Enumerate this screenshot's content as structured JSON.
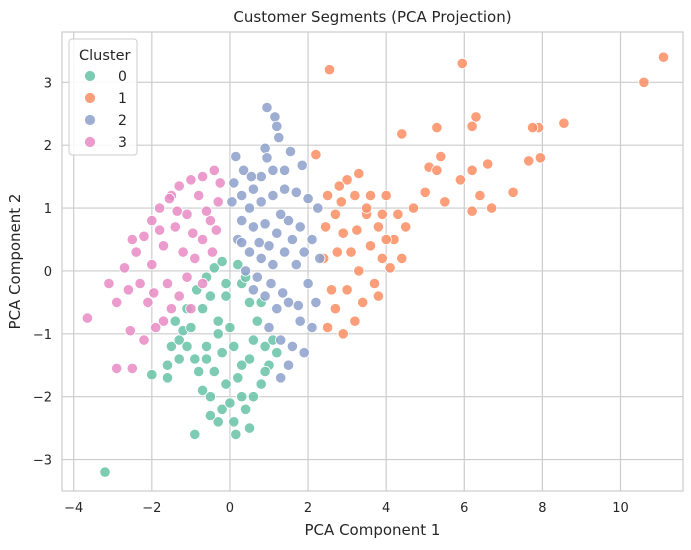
{
  "chart_data": {
    "type": "scatter",
    "title": "Customer Segments (PCA Projection)",
    "xlabel": "PCA Component 1",
    "ylabel": "PCA Component 2",
    "xlim": [
      -4.3,
      11.6
    ],
    "ylim": [
      -3.5,
      3.8
    ],
    "xticks": [
      -4,
      -2,
      0,
      2,
      4,
      6,
      8,
      10
    ],
    "yticks": [
      -3,
      -2,
      -1,
      0,
      1,
      2,
      3
    ],
    "xtick_labels": [
      "−4",
      "−2",
      "0",
      "2",
      "4",
      "6",
      "8",
      "10"
    ],
    "ytick_labels": [
      "−3",
      "−2",
      "−1",
      "0",
      "1",
      "2",
      "3"
    ],
    "grid": true,
    "legend": {
      "title": "Cluster",
      "placement": "top-left"
    },
    "series": [
      {
        "name": "0",
        "color": "#66c2a5",
        "points": [
          [
            -3.2,
            -3.2
          ],
          [
            -0.9,
            -2.6
          ],
          [
            0.15,
            -2.6
          ],
          [
            -2.0,
            -1.65
          ],
          [
            -1.6,
            -1.7
          ],
          [
            -1.3,
            -1.4
          ],
          [
            -1.5,
            -1.2
          ],
          [
            -1.2,
            -0.95
          ],
          [
            -1.1,
            -0.6
          ],
          [
            -0.85,
            -0.3
          ],
          [
            -0.6,
            -0.1
          ],
          [
            -0.4,
            0.05
          ],
          [
            -0.2,
            0.15
          ],
          [
            -0.1,
            -0.4
          ],
          [
            -0.3,
            -0.8
          ],
          [
            -0.6,
            -1.2
          ],
          [
            -0.8,
            -1.6
          ],
          [
            -0.5,
            -2.0
          ],
          [
            -0.2,
            -2.2
          ],
          [
            0.1,
            -2.4
          ],
          [
            0.4,
            -2.2
          ],
          [
            0.6,
            -2.0
          ],
          [
            0.8,
            -1.8
          ],
          [
            1.0,
            -1.5
          ],
          [
            0.9,
            -1.2
          ],
          [
            0.7,
            -0.8
          ],
          [
            0.5,
            -0.5
          ],
          [
            0.3,
            -0.2
          ],
          [
            0.2,
            0.1
          ],
          [
            0.0,
            -0.9
          ],
          [
            -0.2,
            -1.3
          ],
          [
            -0.4,
            -1.6
          ],
          [
            0.2,
            -1.7
          ],
          [
            0.5,
            -1.4
          ],
          [
            0.6,
            -1.1
          ],
          [
            -0.7,
            -0.6
          ],
          [
            -1.0,
            -0.9
          ],
          [
            -1.3,
            -1.1
          ],
          [
            -0.9,
            -1.4
          ],
          [
            -0.7,
            -1.9
          ],
          [
            -0.3,
            -2.4
          ],
          [
            0.3,
            -2.0
          ],
          [
            0.9,
            -1.6
          ],
          [
            1.1,
            -1.1
          ],
          [
            0.8,
            -0.5
          ],
          [
            0.4,
            -0.1
          ],
          [
            -0.1,
            -0.2
          ],
          [
            -0.5,
            -0.4
          ],
          [
            -0.3,
            -1.0
          ],
          [
            0.1,
            -1.2
          ],
          [
            0.3,
            -1.5
          ],
          [
            -0.1,
            -1.8
          ],
          [
            -0.6,
            -1.4
          ],
          [
            -1.1,
            -1.2
          ],
          [
            -1.4,
            -0.8
          ],
          [
            -0.5,
            -2.3
          ],
          [
            0.0,
            -2.1
          ],
          [
            0.5,
            -2.5
          ],
          [
            1.2,
            -1.3
          ],
          [
            -1.6,
            -1.5
          ]
        ]
      },
      {
        "name": "1",
        "color": "#fc8d62",
        "points": [
          [
            2.55,
            3.2
          ],
          [
            5.95,
            3.3
          ],
          [
            11.1,
            3.4
          ],
          [
            10.6,
            3.0
          ],
          [
            6.3,
            2.45
          ],
          [
            6.2,
            2.3
          ],
          [
            8.55,
            2.35
          ],
          [
            7.9,
            2.28
          ],
          [
            7.75,
            2.28
          ],
          [
            4.4,
            2.18
          ],
          [
            5.3,
            2.28
          ],
          [
            7.95,
            1.8
          ],
          [
            7.65,
            1.75
          ],
          [
            6.6,
            1.7
          ],
          [
            6.2,
            1.6
          ],
          [
            5.4,
            1.82
          ],
          [
            5.1,
            1.65
          ],
          [
            5.9,
            1.45
          ],
          [
            7.25,
            1.25
          ],
          [
            6.4,
            1.2
          ],
          [
            6.7,
            1.0
          ],
          [
            6.2,
            0.95
          ],
          [
            5.5,
            1.1
          ],
          [
            5.0,
            1.25
          ],
          [
            4.7,
            1.0
          ],
          [
            4.3,
            0.9
          ],
          [
            4.2,
            0.5
          ],
          [
            3.8,
            0.7
          ],
          [
            3.5,
            0.9
          ],
          [
            3.2,
            1.2
          ],
          [
            3.0,
            1.45
          ],
          [
            3.3,
            1.55
          ],
          [
            2.8,
            1.35
          ],
          [
            2.2,
            1.85
          ],
          [
            2.5,
            1.2
          ],
          [
            2.7,
            0.9
          ],
          [
            2.9,
            0.6
          ],
          [
            3.1,
            0.3
          ],
          [
            3.3,
            0.0
          ],
          [
            3.0,
            -0.3
          ],
          [
            2.7,
            -0.6
          ],
          [
            2.5,
            -0.9
          ],
          [
            2.6,
            -0.3
          ],
          [
            2.4,
            0.2
          ],
          [
            2.45,
            0.7
          ],
          [
            2.75,
            0.3
          ],
          [
            3.6,
            0.4
          ],
          [
            3.9,
            0.2
          ],
          [
            4.4,
            0.2
          ],
          [
            3.7,
            -0.2
          ],
          [
            3.4,
            -0.5
          ],
          [
            3.2,
            -0.8
          ],
          [
            2.9,
            -1.0
          ],
          [
            4.0,
            0.5
          ],
          [
            4.5,
            0.7
          ],
          [
            3.6,
            1.2
          ],
          [
            4.0,
            1.2
          ],
          [
            3.9,
            0.9
          ],
          [
            4.1,
            0.05
          ],
          [
            3.8,
            -0.4
          ],
          [
            5.3,
            1.6
          ],
          [
            3.5,
            1.0
          ],
          [
            2.85,
            1.1
          ],
          [
            3.25,
            0.65
          ]
        ]
      },
      {
        "name": "2",
        "color": "#8da0cb",
        "points": [
          [
            0.95,
            2.6
          ],
          [
            1.15,
            2.45
          ],
          [
            1.2,
            2.3
          ],
          [
            1.25,
            2.12
          ],
          [
            0.9,
            1.95
          ],
          [
            0.95,
            1.8
          ],
          [
            1.55,
            1.9
          ],
          [
            1.85,
            1.68
          ],
          [
            0.15,
            1.82
          ],
          [
            0.35,
            1.6
          ],
          [
            0.1,
            1.4
          ],
          [
            0.3,
            1.2
          ],
          [
            0.6,
            1.3
          ],
          [
            0.8,
            1.1
          ],
          [
            1.1,
            1.2
          ],
          [
            1.4,
            1.3
          ],
          [
            1.7,
            1.25
          ],
          [
            2.0,
            1.15
          ],
          [
            2.25,
            1.0
          ],
          [
            0.3,
            0.8
          ],
          [
            0.6,
            0.7
          ],
          [
            0.9,
            0.75
          ],
          [
            1.2,
            0.6
          ],
          [
            1.5,
            0.8
          ],
          [
            1.8,
            0.7
          ],
          [
            2.1,
            0.5
          ],
          [
            2.3,
            0.2
          ],
          [
            0.5,
            0.3
          ],
          [
            0.8,
            0.2
          ],
          [
            1.1,
            0.1
          ],
          [
            1.4,
            0.3
          ],
          [
            1.7,
            0.1
          ],
          [
            2.0,
            -0.2
          ],
          [
            0.6,
            -0.3
          ],
          [
            0.9,
            -0.4
          ],
          [
            1.2,
            -0.6
          ],
          [
            1.5,
            -0.5
          ],
          [
            1.8,
            -0.8
          ],
          [
            2.1,
            -0.9
          ],
          [
            1.0,
            -0.9
          ],
          [
            1.3,
            -1.1
          ],
          [
            1.6,
            -1.2
          ],
          [
            1.9,
            -1.3
          ],
          [
            1.5,
            -1.5
          ],
          [
            1.3,
            -1.7
          ],
          [
            0.2,
            0.5
          ],
          [
            0.4,
            0.0
          ],
          [
            0.7,
            -0.1
          ],
          [
            1.0,
            0.4
          ],
          [
            1.3,
            0.9
          ],
          [
            1.6,
            0.5
          ],
          [
            1.9,
            0.3
          ],
          [
            2.2,
            -0.5
          ],
          [
            0.5,
            1.0
          ],
          [
            0.8,
            1.5
          ],
          [
            1.1,
            1.6
          ],
          [
            1.4,
            1.6
          ],
          [
            0.3,
            0.45
          ],
          [
            0.75,
            0.45
          ],
          [
            1.05,
            -0.2
          ],
          [
            1.35,
            -0.35
          ],
          [
            1.75,
            -0.55
          ],
          [
            0.55,
            1.5
          ],
          [
            0.05,
            1.1
          ]
        ]
      },
      {
        "name": "3",
        "color": "#e78ac3",
        "points": [
          [
            -3.65,
            -0.75
          ],
          [
            -2.9,
            -1.55
          ],
          [
            -2.5,
            -1.55
          ],
          [
            -2.55,
            -0.95
          ],
          [
            -2.9,
            -0.5
          ],
          [
            -3.1,
            -0.2
          ],
          [
            -2.7,
            0.05
          ],
          [
            -2.4,
            0.3
          ],
          [
            -2.2,
            0.55
          ],
          [
            -2.0,
            0.8
          ],
          [
            -1.8,
            1.0
          ],
          [
            -1.5,
            1.2
          ],
          [
            -1.3,
            1.35
          ],
          [
            -1.0,
            1.45
          ],
          [
            -0.7,
            1.5
          ],
          [
            -0.4,
            1.6
          ],
          [
            -0.25,
            1.4
          ],
          [
            -0.3,
            1.1
          ],
          [
            -0.5,
            0.8
          ],
          [
            -0.7,
            0.5
          ],
          [
            -0.9,
            0.2
          ],
          [
            -1.1,
            -0.1
          ],
          [
            -1.3,
            -0.4
          ],
          [
            -1.5,
            -0.6
          ],
          [
            -1.7,
            -0.8
          ],
          [
            -1.9,
            -0.9
          ],
          [
            -2.1,
            -0.5
          ],
          [
            -2.3,
            -0.2
          ],
          [
            -2.0,
            0.1
          ],
          [
            -1.7,
            0.4
          ],
          [
            -1.4,
            0.7
          ],
          [
            -1.1,
            0.9
          ],
          [
            -0.8,
            1.2
          ],
          [
            -1.6,
            -0.2
          ],
          [
            -1.2,
            0.3
          ],
          [
            -0.95,
            0.6
          ],
          [
            -0.6,
            0.95
          ],
          [
            -0.45,
            0.3
          ],
          [
            -0.7,
            -0.2
          ],
          [
            -1.0,
            -0.6
          ],
          [
            -1.8,
            0.65
          ],
          [
            -2.5,
            0.5
          ],
          [
            -2.6,
            -0.3
          ],
          [
            -2.2,
            -1.1
          ],
          [
            -1.95,
            -0.35
          ],
          [
            -1.35,
            0.95
          ],
          [
            -1.55,
            1.15
          ],
          [
            -0.35,
            0.65
          ]
        ]
      }
    ]
  }
}
